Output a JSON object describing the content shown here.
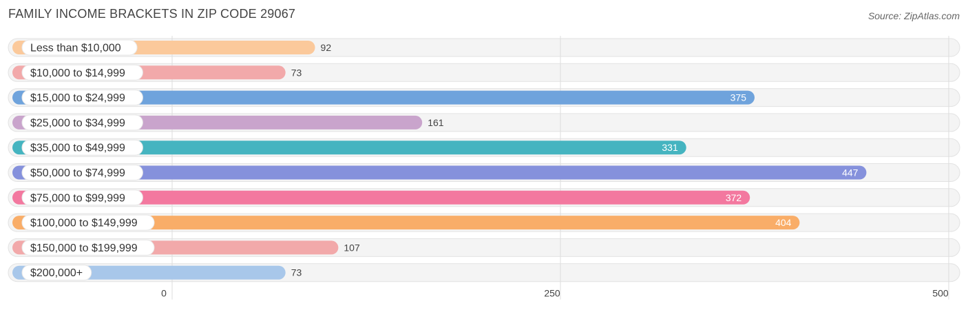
{
  "title": "FAMILY INCOME BRACKETS IN ZIP CODE 29067",
  "source": "Source: ZipAtlas.com",
  "chart_data": {
    "type": "bar",
    "orientation": "horizontal",
    "categories": [
      "Less than $10,000",
      "$10,000 to $14,999",
      "$15,000 to $24,999",
      "$25,000 to $34,999",
      "$35,000 to $49,999",
      "$50,000 to $74,999",
      "$75,000 to $99,999",
      "$100,000 to $149,999",
      "$150,000 to $199,999",
      "$200,000+"
    ],
    "values": [
      92,
      73,
      375,
      161,
      331,
      447,
      372,
      404,
      107,
      73
    ],
    "value_labels": [
      "92",
      "73",
      "375",
      "161",
      "331",
      "447",
      "372",
      "404",
      "107",
      "73"
    ],
    "colors": [
      "#fbc99b",
      "#f2a9aa",
      "#6fa3dc",
      "#c9a4cc",
      "#45b4c0",
      "#8591dc",
      "#f3789f",
      "#f9ad68",
      "#f2a9aa",
      "#a8c7ea"
    ],
    "xlim": [
      0,
      500
    ],
    "xticks": [
      0,
      250,
      500
    ],
    "xtick_labels": [
      "0",
      "250",
      "500"
    ],
    "grid": true,
    "legend": "none"
  }
}
